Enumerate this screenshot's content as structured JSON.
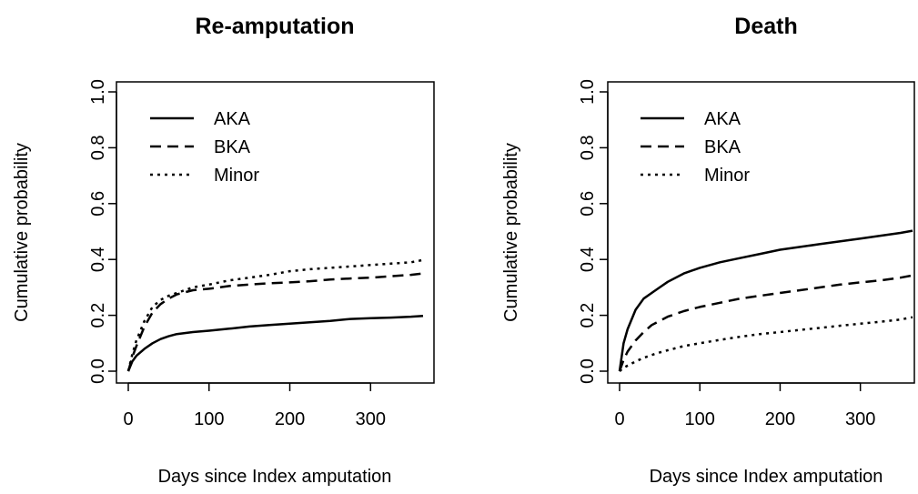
{
  "chart_data": [
    {
      "type": "line",
      "title": "Re-amputation",
      "xlabel": "Days since Index amputation",
      "ylabel": "Cumulative probability",
      "xlim": [
        0,
        365
      ],
      "ylim": [
        0,
        1
      ],
      "xticks": [
        "0",
        "100",
        "200",
        "300"
      ],
      "yticks": [
        "0.0",
        "0.2",
        "0.4",
        "0.6",
        "0.8",
        "1.0"
      ],
      "grid": false,
      "legend_position": "top-left",
      "series": [
        {
          "name": "AKA",
          "style": "solid",
          "x": [
            0,
            5,
            10,
            20,
            30,
            40,
            50,
            60,
            80,
            100,
            125,
            150,
            175,
            200,
            225,
            250,
            275,
            300,
            325,
            350,
            365
          ],
          "y": [
            0,
            0.035,
            0.055,
            0.08,
            0.1,
            0.115,
            0.125,
            0.133,
            0.14,
            0.145,
            0.152,
            0.16,
            0.165,
            0.17,
            0.175,
            0.18,
            0.187,
            0.19,
            0.192,
            0.195,
            0.198
          ]
        },
        {
          "name": "BKA",
          "style": "dashed",
          "x": [
            0,
            5,
            10,
            20,
            30,
            40,
            50,
            60,
            80,
            100,
            125,
            150,
            175,
            200,
            225,
            250,
            275,
            300,
            325,
            350,
            365
          ],
          "y": [
            0,
            0.05,
            0.09,
            0.16,
            0.21,
            0.24,
            0.26,
            0.275,
            0.29,
            0.295,
            0.305,
            0.31,
            0.315,
            0.318,
            0.322,
            0.328,
            0.332,
            0.335,
            0.34,
            0.345,
            0.35
          ]
        },
        {
          "name": "Minor",
          "style": "dotted",
          "x": [
            0,
            5,
            10,
            20,
            30,
            40,
            50,
            60,
            80,
            100,
            125,
            150,
            175,
            200,
            225,
            250,
            275,
            300,
            325,
            350,
            365
          ],
          "y": [
            0,
            0.06,
            0.11,
            0.18,
            0.23,
            0.255,
            0.27,
            0.28,
            0.3,
            0.31,
            0.325,
            0.335,
            0.345,
            0.358,
            0.365,
            0.37,
            0.375,
            0.38,
            0.385,
            0.39,
            0.398
          ]
        }
      ]
    },
    {
      "type": "line",
      "title": "Death",
      "xlabel": "Days since Index amputation",
      "ylabel": "Cumulative probability",
      "xlim": [
        0,
        365
      ],
      "ylim": [
        0,
        1
      ],
      "xticks": [
        "0",
        "100",
        "200",
        "300"
      ],
      "yticks": [
        "0.0",
        "0.2",
        "0.4",
        "0.6",
        "0.8",
        "1.0"
      ],
      "grid": false,
      "legend_position": "top-left",
      "series": [
        {
          "name": "AKA",
          "style": "solid",
          "x": [
            0,
            5,
            10,
            20,
            30,
            40,
            50,
            60,
            80,
            100,
            125,
            150,
            175,
            200,
            225,
            250,
            275,
            300,
            325,
            350,
            365
          ],
          "y": [
            0,
            0.1,
            0.15,
            0.22,
            0.26,
            0.28,
            0.3,
            0.32,
            0.35,
            0.37,
            0.39,
            0.405,
            0.42,
            0.435,
            0.445,
            0.455,
            0.465,
            0.475,
            0.485,
            0.495,
            0.503
          ]
        },
        {
          "name": "BKA",
          "style": "dashed",
          "x": [
            0,
            5,
            10,
            20,
            30,
            40,
            50,
            60,
            80,
            100,
            125,
            150,
            175,
            200,
            225,
            250,
            275,
            300,
            325,
            350,
            365
          ],
          "y": [
            0,
            0.04,
            0.07,
            0.11,
            0.14,
            0.165,
            0.18,
            0.195,
            0.215,
            0.23,
            0.245,
            0.26,
            0.27,
            0.28,
            0.29,
            0.3,
            0.31,
            0.318,
            0.325,
            0.335,
            0.343
          ]
        },
        {
          "name": "Minor",
          "style": "dotted",
          "x": [
            0,
            5,
            10,
            20,
            30,
            40,
            50,
            60,
            80,
            100,
            125,
            150,
            175,
            200,
            225,
            250,
            275,
            300,
            325,
            350,
            365
          ],
          "y": [
            0,
            0.012,
            0.02,
            0.035,
            0.048,
            0.058,
            0.067,
            0.075,
            0.09,
            0.1,
            0.112,
            0.123,
            0.133,
            0.14,
            0.148,
            0.155,
            0.163,
            0.17,
            0.177,
            0.185,
            0.193
          ]
        }
      ]
    }
  ]
}
